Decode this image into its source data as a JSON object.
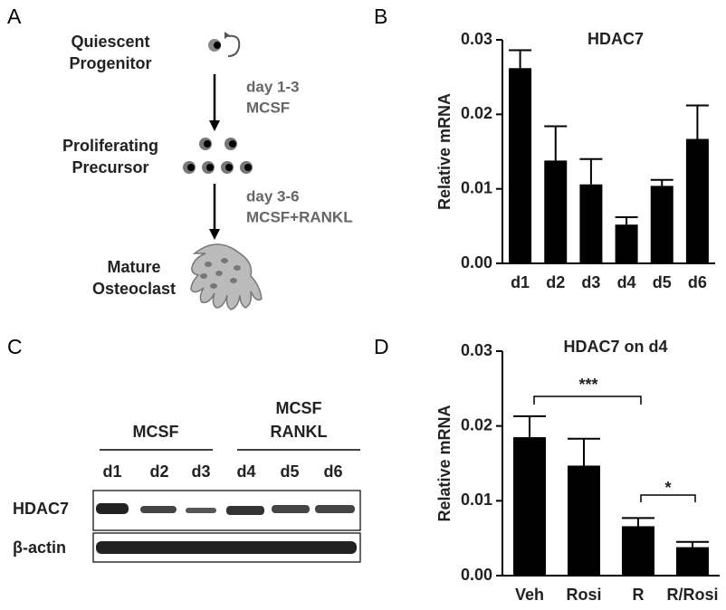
{
  "panel_labels": [
    "A",
    "B",
    "C",
    "D"
  ],
  "diagram": {
    "stages": [
      [
        "Quiescent",
        "Progenitor"
      ],
      [
        "Proliferating",
        "Precursor"
      ],
      [
        "Mature",
        "Osteoclast"
      ]
    ],
    "transitions": [
      [
        "day 1-3",
        "MCSF"
      ],
      [
        "day 3-6",
        "MCSF+RANKL"
      ]
    ]
  },
  "blot": {
    "groups": [
      [
        "MCSF"
      ],
      [
        "MCSF",
        "RANKL"
      ]
    ],
    "lanes": [
      "d1",
      "d2",
      "d3",
      "d4",
      "d5",
      "d6"
    ],
    "rows": [
      "HDAC7",
      "β-actin"
    ]
  },
  "chart_data": [
    {
      "type": "bar",
      "title": "HDAC7",
      "y_label": "Relative mRNA",
      "categories": [
        "d1",
        "d2",
        "d3",
        "d4",
        "d5",
        "d6"
      ],
      "values": [
        0.0262,
        0.0138,
        0.0106,
        0.0052,
        0.0104,
        0.0167
      ],
      "errors": [
        0.0024,
        0.0046,
        0.0034,
        0.001,
        0.0008,
        0.0045
      ],
      "color": "#000000",
      "ylim": [
        0,
        0.03
      ],
      "yticks": [
        {
          "value": 0,
          "label": "0.00"
        },
        0.01,
        0.02,
        0.03
      ]
    },
    {
      "type": "bar",
      "title": "HDAC7 on d4",
      "y_label": "Relative mRNA",
      "categories": [
        "Veh",
        "Rosi",
        "R",
        "R/Rosi"
      ],
      "values": [
        0.0185,
        0.0147,
        0.0066,
        0.0038
      ],
      "errors": [
        0.0028,
        0.0036,
        0.0011,
        0.0007
      ],
      "color": "#000000",
      "ylim": [
        0,
        0.03
      ],
      "yticks": [
        {
          "value": 0,
          "label": "0.00"
        },
        0.01,
        0.02,
        0.03
      ],
      "annotations": [
        "***",
        "*"
      ]
    }
  ]
}
